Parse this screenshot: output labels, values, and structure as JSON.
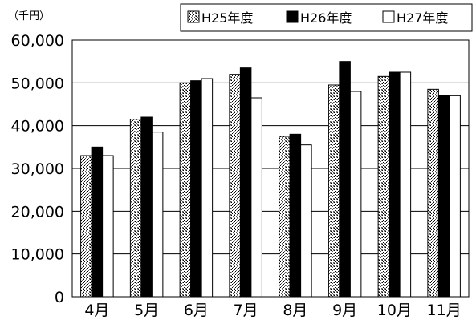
{
  "chart_data": {
    "type": "bar",
    "unit_label": "（千円）",
    "categories": [
      "4月",
      "5月",
      "6月",
      "7月",
      "8月",
      "9月",
      "10月",
      "11月"
    ],
    "series": [
      {
        "name": "H25年度",
        "values": [
          33000,
          41500,
          50000,
          52000,
          37500,
          49500,
          51500,
          48500
        ]
      },
      {
        "name": "H26年度",
        "values": [
          35000,
          42000,
          50500,
          53500,
          38000,
          55000,
          52500,
          47000
        ]
      },
      {
        "name": "H27年度",
        "values": [
          33000,
          38500,
          51000,
          46500,
          35500,
          48000,
          52500,
          47000
        ]
      }
    ],
    "ylim": [
      0,
      60000
    ],
    "yticks": [
      0,
      10000,
      20000,
      30000,
      40000,
      50000,
      60000
    ],
    "ytick_labels": [
      "0",
      "10,000",
      "20,000",
      "30,000",
      "40,000",
      "50,000",
      "60,000"
    ],
    "grid": true,
    "legend_position": "top-right",
    "series_styles": [
      "stipple",
      "solid-black",
      "white"
    ]
  }
}
